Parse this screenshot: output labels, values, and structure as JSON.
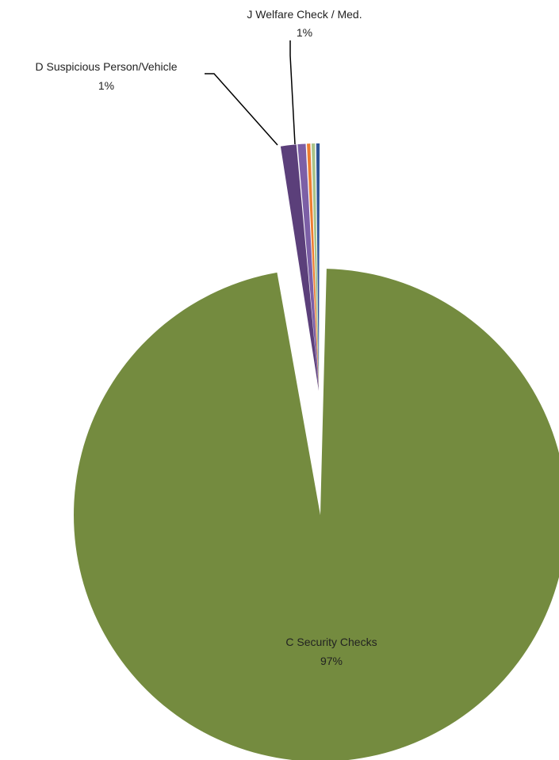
{
  "chart_data": {
    "type": "pie",
    "title": "",
    "slices": [
      {
        "label": "",
        "value": 0.3,
        "color": "#2e5597"
      },
      {
        "label": "",
        "value": 0.3,
        "color": "#a9c38a"
      },
      {
        "label": "",
        "value": 0.3,
        "color": "#ed7d31"
      },
      {
        "label": "J Welfare Check / Med.",
        "value": 0.6,
        "percent_label": "1%",
        "color": "#7c5fa6"
      },
      {
        "label": "D Suspicious Person/Vehicle",
        "value": 1.1,
        "percent_label": "1%",
        "color": "#5b3f7a"
      },
      {
        "label": "C Security Checks",
        "value": 97.4,
        "percent_label": "97%",
        "color": "#748b3f"
      }
    ],
    "legend": "none"
  }
}
